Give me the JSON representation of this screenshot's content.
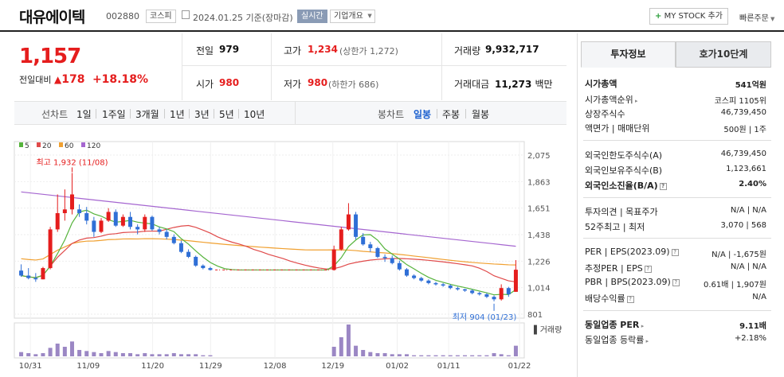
{
  "header": {
    "company_name": "대유에이텍",
    "code": "002880",
    "market": "코스피",
    "date_text": "2024.01.25 기준(장마감)",
    "realtime": "실시간",
    "company_info": "기업개요",
    "mystock_label": "MY STOCK 추가",
    "quick_order": "빠른주문"
  },
  "price": {
    "current": "1,157",
    "change_label": "전일대비",
    "change_value": "178",
    "change_pct": "+18.18%"
  },
  "quote": {
    "prev_label": "전일",
    "prev_value": "979",
    "high_label": "고가",
    "high_value": "1,234",
    "high_sub": "(상한가 1,272)",
    "volume_label": "거래량",
    "volume_value": "9,932,717",
    "open_label": "시가",
    "open_value": "980",
    "low_label": "저가",
    "low_value": "980",
    "low_sub": "(하한가 686)",
    "amount_label": "거래대금",
    "amount_value": "11,273",
    "amount_unit": "백만"
  },
  "toolbar": {
    "line_label": "선차트",
    "line_periods": [
      "1일",
      "1주일",
      "3개월",
      "1년",
      "3년",
      "5년",
      "10년"
    ],
    "candle_label": "봉차트",
    "candle_periods": [
      "일봉",
      "주봉",
      "월봉"
    ]
  },
  "colors": {
    "up": "#e51d1d",
    "down": "#2f6fd6",
    "ma5": "#55b33b",
    "ma20": "#e04a4a",
    "ma60": "#f0a030",
    "ma120": "#a566d0",
    "volume": "#9b87c4"
  },
  "chart_data": {
    "type": "candlestick",
    "legend": [
      "5",
      "20",
      "60",
      "120"
    ],
    "y_ticks": [
      "2,075",
      "1,863",
      "1,651",
      "1,438",
      "1,226",
      "1,014",
      "801"
    ],
    "ylim": [
      801,
      2075
    ],
    "x_ticks": [
      "10/31",
      "11/09",
      "11/20",
      "11/29",
      "12/08",
      "12/19",
      "01/02",
      "01/11",
      "01/22"
    ],
    "high_annotation": "최고 1,932 (11/08)",
    "low_annotation": "최저 904 (01/23)",
    "volume_label": "거래량",
    "candles": [
      [
        1150,
        1200,
        1100,
        1110
      ],
      [
        1110,
        1170,
        1080,
        1090
      ],
      [
        1090,
        1130,
        1060,
        1080
      ],
      [
        1080,
        1180,
        1080,
        1170
      ],
      [
        1170,
        1500,
        1160,
        1480
      ],
      [
        1480,
        1760,
        1460,
        1610
      ],
      [
        1610,
        1800,
        1550,
        1640
      ],
      [
        1640,
        1932,
        1600,
        1760
      ],
      [
        1640,
        1680,
        1580,
        1610
      ],
      [
        1610,
        1660,
        1520,
        1550
      ],
      [
        1550,
        1580,
        1420,
        1460
      ],
      [
        1460,
        1570,
        1450,
        1550
      ],
      [
        1550,
        1650,
        1540,
        1620
      ],
      [
        1620,
        1640,
        1500,
        1510
      ],
      [
        1510,
        1600,
        1500,
        1580
      ],
      [
        1580,
        1620,
        1480,
        1500
      ],
      [
        1500,
        1520,
        1440,
        1480
      ],
      [
        1480,
        1600,
        1460,
        1580
      ],
      [
        1580,
        1590,
        1470,
        1480
      ],
      [
        1480,
        1500,
        1440,
        1460
      ],
      [
        1460,
        1480,
        1400,
        1420
      ],
      [
        1420,
        1440,
        1360,
        1370
      ],
      [
        1370,
        1390,
        1290,
        1300
      ],
      [
        1300,
        1320,
        1250,
        1260
      ],
      [
        1260,
        1270,
        1180,
        1190
      ],
      [
        1190,
        1200,
        1160,
        1170
      ],
      [
        1170,
        1180,
        1150,
        1155
      ],
      [
        1155,
        1155,
        1155,
        1155
      ],
      [
        1155,
        1155,
        1155,
        1155
      ],
      [
        1155,
        1155,
        1155,
        1155
      ],
      [
        1155,
        1155,
        1155,
        1155
      ],
      [
        1155,
        1155,
        1155,
        1155
      ],
      [
        1155,
        1155,
        1155,
        1155
      ],
      [
        1155,
        1155,
        1155,
        1155
      ],
      [
        1155,
        1155,
        1155,
        1155
      ],
      [
        1155,
        1155,
        1155,
        1155
      ],
      [
        1155,
        1155,
        1155,
        1155
      ],
      [
        1155,
        1155,
        1155,
        1155
      ],
      [
        1155,
        1155,
        1155,
        1155
      ],
      [
        1155,
        1155,
        1155,
        1155
      ],
      [
        1155,
        1155,
        1155,
        1155
      ],
      [
        1155,
        1155,
        1155,
        1155
      ],
      [
        1155,
        1155,
        1155,
        1155
      ],
      [
        1155,
        1350,
        1150,
        1320
      ],
      [
        1320,
        1500,
        1310,
        1480
      ],
      [
        1480,
        1690,
        1470,
        1600
      ],
      [
        1600,
        1620,
        1400,
        1420
      ],
      [
        1420,
        1450,
        1350,
        1360
      ],
      [
        1360,
        1380,
        1300,
        1330
      ],
      [
        1330,
        1340,
        1250,
        1260
      ],
      [
        1260,
        1280,
        1220,
        1250
      ],
      [
        1250,
        1270,
        1200,
        1210
      ],
      [
        1210,
        1230,
        1150,
        1160
      ],
      [
        1160,
        1170,
        1100,
        1110
      ],
      [
        1110,
        1120,
        1080,
        1090
      ],
      [
        1090,
        1100,
        1060,
        1070
      ],
      [
        1070,
        1080,
        1040,
        1050
      ],
      [
        1050,
        1060,
        1030,
        1040
      ],
      [
        1040,
        1050,
        1020,
        1030
      ],
      [
        1030,
        1040,
        1000,
        1010
      ],
      [
        1010,
        1020,
        990,
        1000
      ],
      [
        1000,
        1005,
        980,
        990
      ],
      [
        990,
        1000,
        960,
        970
      ],
      [
        970,
        980,
        950,
        960
      ],
      [
        960,
        970,
        930,
        940
      ],
      [
        940,
        950,
        904,
        920
      ],
      [
        920,
        1040,
        910,
        1010
      ],
      [
        1010,
        1020,
        940,
        960
      ],
      [
        980,
        1234,
        980,
        1157
      ]
    ],
    "volumes": [
      4,
      3,
      2,
      3,
      8,
      12,
      9,
      14,
      6,
      5,
      4,
      3,
      5,
      4,
      3,
      3,
      2,
      3,
      2,
      2,
      2,
      3,
      2,
      2,
      2,
      1,
      1,
      0,
      0,
      0,
      0,
      0,
      0,
      0,
      0,
      0,
      0,
      0,
      0,
      0,
      0,
      0,
      0,
      9,
      18,
      30,
      10,
      6,
      4,
      3,
      3,
      2,
      2,
      2,
      1,
      1,
      1,
      1,
      1,
      1,
      1,
      1,
      1,
      1,
      1,
      3,
      2,
      1,
      10
    ]
  },
  "right_panel": {
    "tab_invest": "투자정보",
    "tab_orderbook": "호가10단계",
    "market_cap_label": "시가총액",
    "market_cap": "541억원",
    "rank_label": "시가총액순위",
    "rank_value": "코스피 1105위",
    "shares_label": "상장주식수",
    "shares_value": "46,739,450",
    "par_label": "액면가 | 매매단위",
    "par_value": "500원 | 1주",
    "foreign_limit_label": "외국인한도주식수(A)",
    "foreign_limit_value": "46,739,450",
    "foreign_hold_label": "외국인보유주식수(B)",
    "foreign_hold_value": "1,123,661",
    "foreign_rate_label": "외국인소진율(B/A)",
    "foreign_rate_value": "2.40%",
    "opinion_label": "투자의견 | 목표주가",
    "opinion_value": "N/A | N/A",
    "week52_label": "52주최고 | 최저",
    "week52_value": "3,070 | 568",
    "per_label": "PER | EPS(2023.09)",
    "per_value": "N/A | -1,675원",
    "est_per_label": "추정PER | EPS",
    "est_per_value": "N/A | N/A",
    "pbr_label": "PBR | BPS(2023.09)",
    "pbr_value": "0.61배 | 1,907원",
    "div_label": "배당수익률",
    "div_value": "N/A",
    "industry_per_label": "동일업종 PER",
    "industry_per_value": "9.11배",
    "industry_rate_label": "동일업종 등락률",
    "industry_rate_value": "+2.18%"
  }
}
